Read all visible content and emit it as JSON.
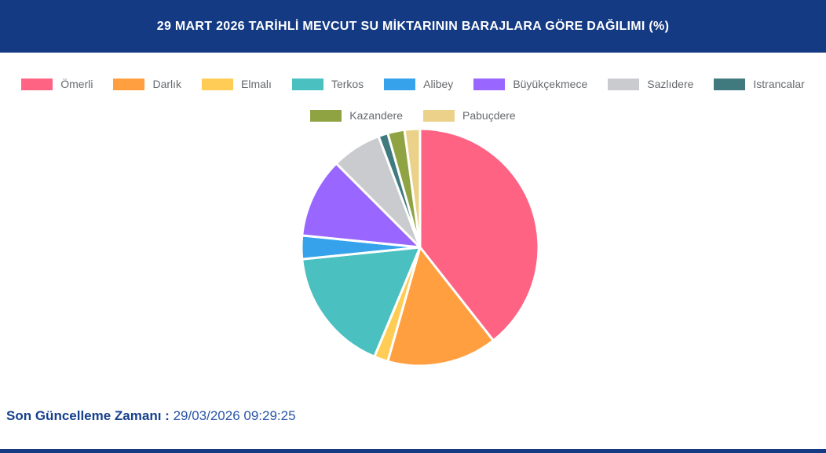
{
  "header": {
    "title": "29 MART 2026 TARİHLİ MEVCUT SU MİKTARININ BARAJLARA GÖRE DAĞILIMI (%)"
  },
  "footer": {
    "label": "Son Güncelleme Zamanı",
    "separator": " : ",
    "value": "29/03/2026 09:29:25"
  },
  "colors": {
    "header_bg": "#143A83",
    "bottom_bar": "#143A83",
    "footer_label": "#16408C",
    "footer_value": "#2A55A8",
    "legend_text": "#666A6E",
    "slice_border": "#FFFFFF"
  },
  "chart_data": {
    "type": "pie",
    "title": "29 MART 2026 TARİHLİ MEVCUT SU MİKTARININ BARAJLARA GÖRE DAĞILIMI (%)",
    "unit": "%",
    "legend_position": "top",
    "start_angle_deg": 0,
    "direction": "clockwise",
    "border_color": "#FFFFFF",
    "border_width": 3,
    "layout": {
      "legend_break_after_index": 7
    },
    "series": [
      {
        "name": "Ömerli",
        "value": 39.4,
        "color": "#FF6384"
      },
      {
        "name": "Darlık",
        "value": 15.0,
        "color": "#FF9F40"
      },
      {
        "name": "Elmalı",
        "value": 1.9,
        "color": "#FFCD56"
      },
      {
        "name": "Terkos",
        "value": 17.1,
        "color": "#4BC0C0"
      },
      {
        "name": "Alibey",
        "value": 3.2,
        "color": "#36A2EB"
      },
      {
        "name": "Büyükçekmece",
        "value": 10.9,
        "color": "#9966FF"
      },
      {
        "name": "Sazlıdere",
        "value": 6.8,
        "color": "#C9CBCF"
      },
      {
        "name": "Istrancalar",
        "value": 1.3,
        "color": "#40797E"
      },
      {
        "name": "Kazandere",
        "value": 2.3,
        "color": "#8FA342"
      },
      {
        "name": "Pabuçdere",
        "value": 2.1,
        "color": "#EBD189"
      }
    ]
  }
}
